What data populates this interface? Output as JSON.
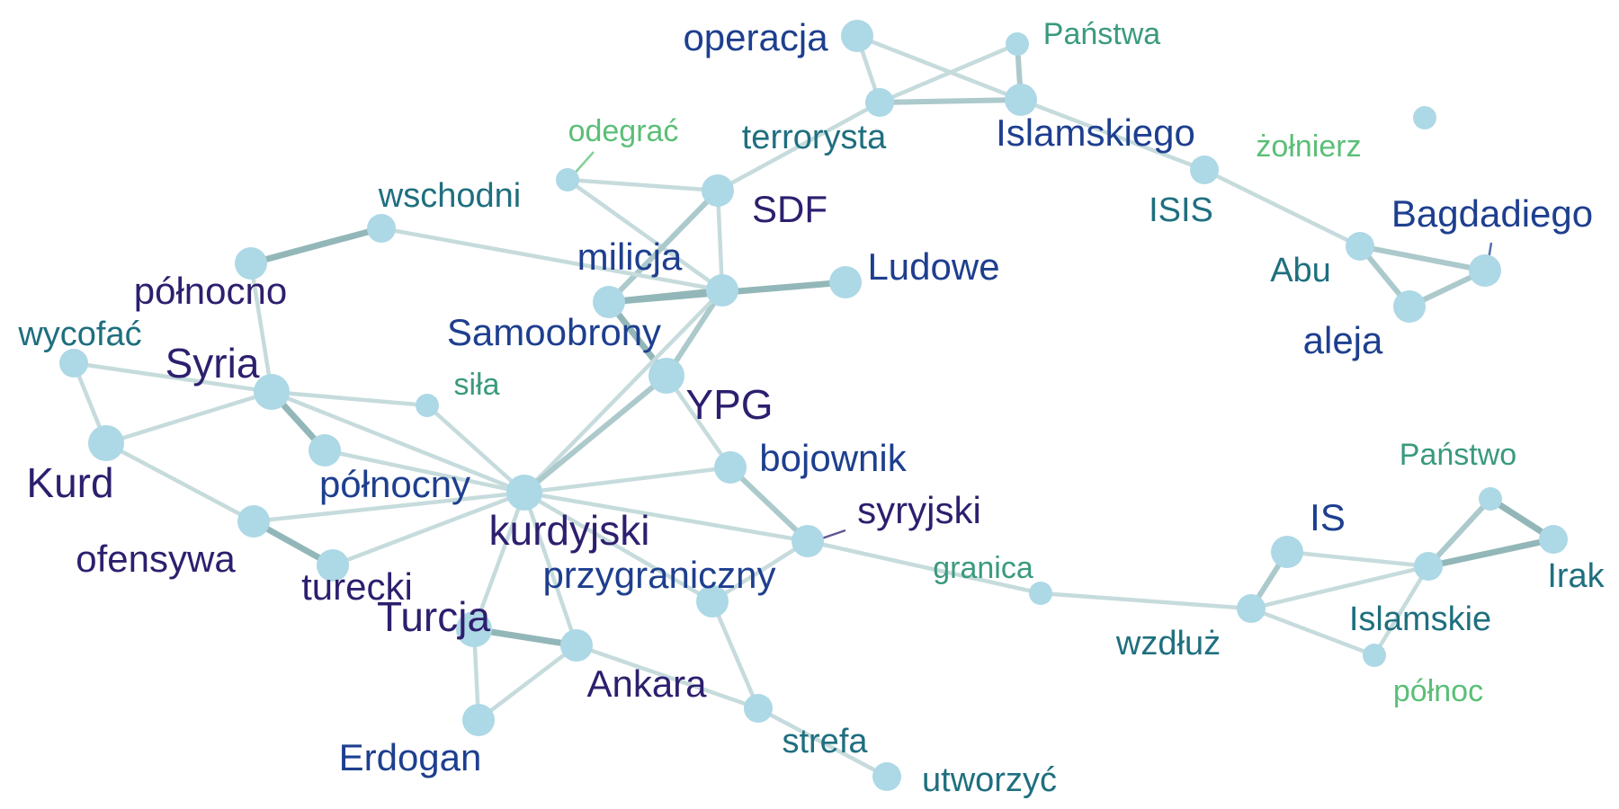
{
  "nodes": [
    {
      "id": "operacja",
      "label": "operacja",
      "color": "#1e3f8f",
      "size": "l"
    },
    {
      "id": "panstwa",
      "label": "Państwa",
      "color": "#3a9a7e",
      "size": "s"
    },
    {
      "id": "terrorysta",
      "label": "terrorysta",
      "color": "#1f6f7f",
      "size": "m"
    },
    {
      "id": "islamskiego",
      "label": "Islamskiego",
      "color": "#1e3f8f",
      "size": "l"
    },
    {
      "id": "odegrac",
      "label": "odegrać",
      "color": "#5bbf77",
      "size": "s"
    },
    {
      "id": "zolnierz",
      "label": "żołnierz",
      "color": "#5bbf77",
      "size": "s"
    },
    {
      "id": "wschodni",
      "label": "wschodni",
      "color": "#1f6f7f",
      "size": "m"
    },
    {
      "id": "sdf",
      "label": "SDF",
      "color": "#2d1f6e",
      "size": "l"
    },
    {
      "id": "isis",
      "label": "ISIS",
      "color": "#1f6f7f",
      "size": "m"
    },
    {
      "id": "bagdadiego",
      "label": "Bagdadiego",
      "color": "#1e3f8f",
      "size": "l"
    },
    {
      "id": "abu",
      "label": "Abu",
      "color": "#1f6f7f",
      "size": "m"
    },
    {
      "id": "milicja",
      "label": "milicja",
      "color": "#1e3f8f",
      "size": "l"
    },
    {
      "id": "ludowe",
      "label": "Ludowe",
      "color": "#1e3f8f",
      "size": "l"
    },
    {
      "id": "polnocno",
      "label": "północno",
      "color": "#2d1f6e",
      "size": "l"
    },
    {
      "id": "samoobrony",
      "label": "Samoobrony",
      "color": "#1e3f8f",
      "size": "l"
    },
    {
      "id": "aleja",
      "label": "aleja",
      "color": "#1e3f8f",
      "size": "l"
    },
    {
      "id": "wycofac",
      "label": "wycofać",
      "color": "#1f6f7f",
      "size": "m"
    },
    {
      "id": "syria",
      "label": "Syria",
      "color": "#2d1f6e",
      "size": "xl"
    },
    {
      "id": "sila",
      "label": "siła",
      "color": "#3a9a7e",
      "size": "s"
    },
    {
      "id": "ypg",
      "label": "YPG",
      "color": "#2d1f6e",
      "size": "xl"
    },
    {
      "id": "kurd",
      "label": "Kurd",
      "color": "#2d1f6e",
      "size": "xl"
    },
    {
      "id": "bojownik",
      "label": "bojownik",
      "color": "#1e3f8f",
      "size": "l"
    },
    {
      "id": "panstwo",
      "label": "Państwo",
      "color": "#3a9a7e",
      "size": "s"
    },
    {
      "id": "polnocny",
      "label": "północny",
      "color": "#1e3f8f",
      "size": "l"
    },
    {
      "id": "kurdyjski",
      "label": "kurdyjski",
      "color": "#2d1f6e",
      "size": "xl"
    },
    {
      "id": "syryjski",
      "label": "syryjski",
      "color": "#2d1f6e",
      "size": "l"
    },
    {
      "id": "is",
      "label": "IS",
      "color": "#1e3f8f",
      "size": "l"
    },
    {
      "id": "irak",
      "label": "Irak",
      "color": "#1f6f7f",
      "size": "m"
    },
    {
      "id": "ofensywa",
      "label": "ofensywa",
      "color": "#2d1f6e",
      "size": "l"
    },
    {
      "id": "granica",
      "label": "granica",
      "color": "#3a9a7e",
      "size": "s"
    },
    {
      "id": "turecki",
      "label": "turecki",
      "color": "#2d1f6e",
      "size": "l"
    },
    {
      "id": "przygraniczny",
      "label": "przygraniczny",
      "color": "#1e3f8f",
      "size": "l"
    },
    {
      "id": "islamskie",
      "label": "Islamskie",
      "color": "#1f6f7f",
      "size": "m"
    },
    {
      "id": "turcja",
      "label": "Turcja",
      "color": "#2d1f6e",
      "size": "xl"
    },
    {
      "id": "wzdluz",
      "label": "wzdłuż",
      "color": "#1f6f7f",
      "size": "m"
    },
    {
      "id": "polnoc",
      "label": "północ",
      "color": "#5bbf77",
      "size": "s"
    },
    {
      "id": "ankara",
      "label": "Ankara",
      "color": "#2d1f6e",
      "size": "l"
    },
    {
      "id": "erdogan",
      "label": "Erdogan",
      "color": "#1e3f8f",
      "size": "l"
    },
    {
      "id": "strefa",
      "label": "strefa",
      "color": "#1f6f7f",
      "size": "m"
    },
    {
      "id": "utworzyc",
      "label": "utworzyć",
      "color": "#1f6f7f",
      "size": "m"
    }
  ],
  "edges": [
    {
      "a": "operacja",
      "b": "terrorysta",
      "w": 1
    },
    {
      "a": "operacja",
      "b": "islamskiego",
      "w": 1
    },
    {
      "a": "terrorysta",
      "b": "islamskiego",
      "w": 2
    },
    {
      "a": "terrorysta",
      "b": "panstwa",
      "w": 1
    },
    {
      "a": "panstwa",
      "b": "islamskiego",
      "w": 2
    },
    {
      "a": "islamskiego",
      "b": "isis",
      "w": 1
    },
    {
      "a": "isis",
      "b": "abu",
      "w": 1
    },
    {
      "a": "abu",
      "b": "bagdadiego",
      "w": 2
    },
    {
      "a": "abu",
      "b": "aleja",
      "w": 2
    },
    {
      "a": "aleja",
      "b": "bagdadiego",
      "w": 2
    },
    {
      "a": "terrorysta",
      "b": "sdf",
      "w": 1
    },
    {
      "a": "odegrac",
      "b": "sdf",
      "w": 1
    },
    {
      "a": "odegrac",
      "b": "samoobrony",
      "w": 1
    },
    {
      "a": "sdf",
      "b": "samoobrony",
      "w": 1
    },
    {
      "a": "sdf",
      "b": "milicja",
      "w": 2
    },
    {
      "a": "samoobrony",
      "b": "milicja",
      "w": 3
    },
    {
      "a": "milicja",
      "b": "ludowe",
      "w": 3
    },
    {
      "a": "milicja",
      "b": "ypg",
      "w": 3
    },
    {
      "a": "samoobrony",
      "b": "ypg",
      "w": 2
    },
    {
      "a": "wschodni",
      "b": "polnocno",
      "w": 3
    },
    {
      "a": "wschodni",
      "b": "samoobrony",
      "w": 1
    },
    {
      "a": "polnocno",
      "b": "syria",
      "w": 1
    },
    {
      "a": "wycofac",
      "b": "syria",
      "w": 1
    },
    {
      "a": "wycofac",
      "b": "kurd",
      "w": 1
    },
    {
      "a": "kurd",
      "b": "syria",
      "w": 1
    },
    {
      "a": "syria",
      "b": "sila",
      "w": 1
    },
    {
      "a": "syria",
      "b": "polnocny",
      "w": 3
    },
    {
      "a": "syria",
      "b": "kurdyjski",
      "w": 1
    },
    {
      "a": "polnocny",
      "b": "kurdyjski",
      "w": 1
    },
    {
      "a": "sila",
      "b": "kurdyjski",
      "w": 1
    },
    {
      "a": "samoobrony",
      "b": "kurdyjski",
      "w": 1
    },
    {
      "a": "ypg",
      "b": "kurdyjski",
      "w": 2
    },
    {
      "a": "ypg",
      "b": "bojownik",
      "w": 1
    },
    {
      "a": "bojownik",
      "b": "kurdyjski",
      "w": 1
    },
    {
      "a": "bojownik",
      "b": "syryjski",
      "w": 2
    },
    {
      "a": "kurdyjski",
      "b": "syryjski",
      "w": 1
    },
    {
      "a": "kurdyjski",
      "b": "ofensywa",
      "w": 1
    },
    {
      "a": "kurdyjski",
      "b": "turecki",
      "w": 1
    },
    {
      "a": "kurdyjski",
      "b": "turcja",
      "w": 1
    },
    {
      "a": "kurdyjski",
      "b": "ankara",
      "w": 1
    },
    {
      "a": "kurdyjski",
      "b": "przygraniczny",
      "w": 1
    },
    {
      "a": "kurd",
      "b": "ofensywa",
      "w": 1
    },
    {
      "a": "ofensywa",
      "b": "turecki",
      "w": 3
    },
    {
      "a": "turcja",
      "b": "ankara",
      "w": 3
    },
    {
      "a": "turcja",
      "b": "erdogan",
      "w": 1
    },
    {
      "a": "ankara",
      "b": "erdogan",
      "w": 1
    },
    {
      "a": "ankara",
      "b": "strefa",
      "w": 1
    },
    {
      "a": "przygraniczny",
      "b": "strefa",
      "w": 1
    },
    {
      "a": "strefa",
      "b": "utworzyc",
      "w": 1
    },
    {
      "a": "syryjski",
      "b": "przygraniczny",
      "w": 1
    },
    {
      "a": "syryjski",
      "b": "granica",
      "w": 1
    },
    {
      "a": "granica",
      "b": "wzdluz",
      "w": 1
    },
    {
      "a": "wzdluz",
      "b": "is",
      "w": 2
    },
    {
      "a": "wzdluz",
      "b": "islamskie",
      "w": 1
    },
    {
      "a": "wzdluz",
      "b": "polnoc",
      "w": 1
    },
    {
      "a": "is",
      "b": "islamskie",
      "w": 1
    },
    {
      "a": "islamskie",
      "b": "panstwo",
      "w": 2
    },
    {
      "a": "islamskie",
      "b": "irak",
      "w": 3
    },
    {
      "a": "panstwo",
      "b": "irak",
      "w": 3
    },
    {
      "a": "islamskie",
      "b": "polnoc",
      "w": 1
    }
  ]
}
